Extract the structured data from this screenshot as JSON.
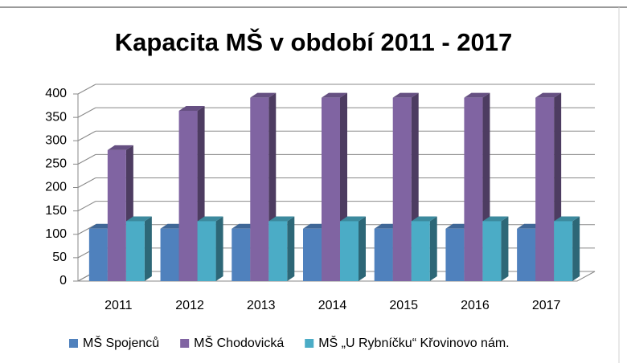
{
  "chart_data": {
    "type": "bar3d",
    "title": "Kapacita MŠ v období 2011 - 2017",
    "categories": [
      "2011",
      "2012",
      "2013",
      "2014",
      "2015",
      "2016",
      "2017"
    ],
    "series": [
      {
        "name": "MŠ Spojenců",
        "color": "#4f81bd",
        "values": [
          112,
          112,
          112,
          112,
          112,
          112,
          112
        ]
      },
      {
        "name": "MŠ Chodovická",
        "color": "#8064a2",
        "values": [
          280,
          364,
          392,
          392,
          392,
          392,
          392
        ]
      },
      {
        "name": "MŠ „U Rybníčku“ Křovinovo nám.",
        "color": "#4bacc6",
        "values": [
          128,
          128,
          128,
          128,
          128,
          128,
          128
        ]
      }
    ],
    "ylim": [
      0,
      400
    ],
    "yticks": [
      0,
      50,
      100,
      150,
      200,
      250,
      300,
      350,
      400
    ],
    "grid": true,
    "legend": "bottom"
  }
}
